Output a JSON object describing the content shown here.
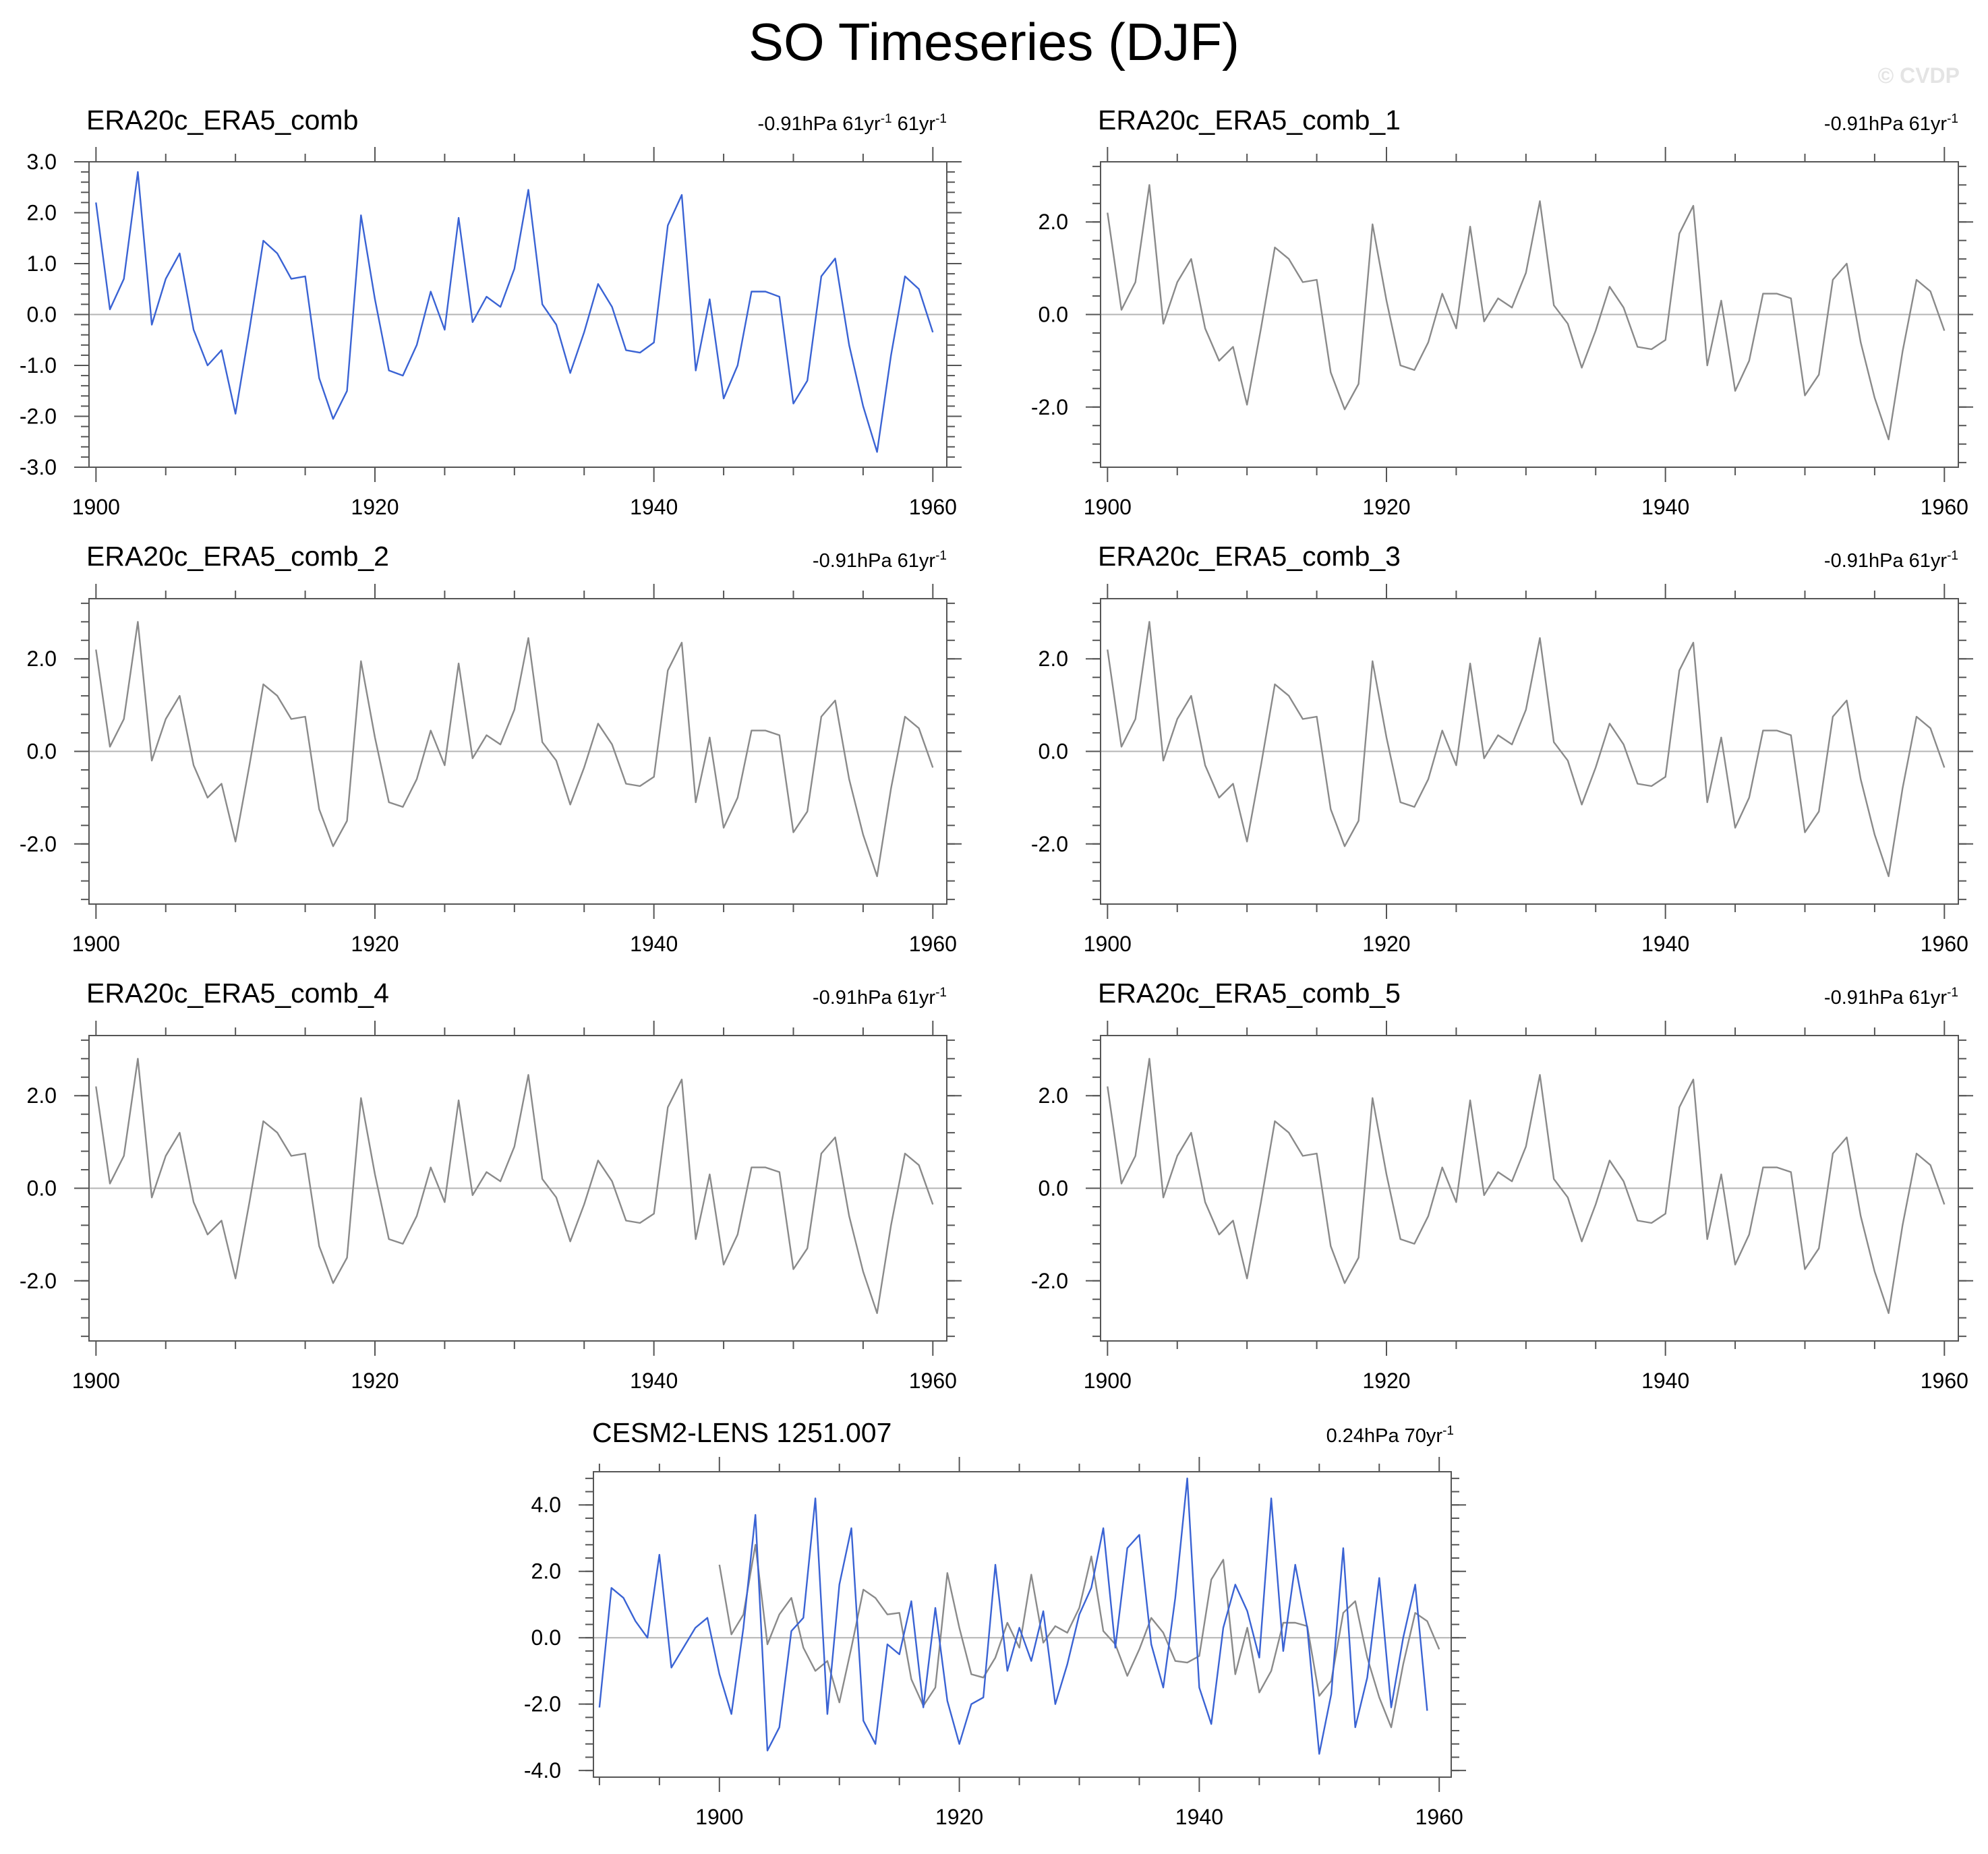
{
  "page": {
    "title": "SO Timeseries (DJF)",
    "watermark": "© CVDP"
  },
  "colors": {
    "observed_line": "#3a63d4",
    "ensemble_line": "#8a8a8a",
    "zero_line": "#b4b4b4",
    "frame": "#555555"
  },
  "chart_data": [
    {
      "type": "line",
      "title": "ERA20c_ERA5_comb",
      "stat": {
        "trend": "-0.91hPa 61yr",
        "sup1": "-1",
        "period": " 61yr",
        "sup2": "-1"
      },
      "xlabel": "",
      "ylabel": "",
      "xlim": [
        1899.5,
        1961.0
      ],
      "ylim": [
        -3.0,
        3.0
      ],
      "xticks": [
        1900,
        1920,
        1940,
        1960
      ],
      "yticks": [
        3.0,
        2.0,
        1.0,
        0.0,
        -1.0,
        -2.0,
        -3.0
      ],
      "ytick_labels": [
        "3.0",
        "2.0",
        "1.0",
        "0.0",
        "-1.0",
        "-2.0",
        "-3.0"
      ],
      "grid": false,
      "zero_line": true,
      "series": [
        {
          "color_key": "observed_line",
          "x_start": 1900,
          "values_ref": "obs"
        }
      ]
    },
    {
      "type": "line",
      "title": "ERA20c_ERA5_comb_1",
      "stat": {
        "trend": "-0.91hPa 61yr",
        "sup1": "-1"
      },
      "xlim": [
        1899.5,
        1961.0
      ],
      "ylim": [
        -3.3,
        3.3
      ],
      "xticks": [
        1900,
        1920,
        1940,
        1960
      ],
      "yticks": [
        2.0,
        0.0,
        -2.0
      ],
      "ytick_labels": [
        "2.0",
        "0.0",
        "-2.0"
      ],
      "grid": false,
      "zero_line": true,
      "series": [
        {
          "color_key": "ensemble_line",
          "x_start": 1900,
          "values_ref": "obs"
        }
      ]
    },
    {
      "type": "line",
      "title": "ERA20c_ERA5_comb_2",
      "stat": {
        "trend": "-0.91hPa 61yr",
        "sup1": "-1"
      },
      "xlim": [
        1899.5,
        1961.0
      ],
      "ylim": [
        -3.3,
        3.3
      ],
      "xticks": [
        1900,
        1920,
        1940,
        1960
      ],
      "yticks": [
        2.0,
        0.0,
        -2.0
      ],
      "ytick_labels": [
        "2.0",
        "0.0",
        "-2.0"
      ],
      "grid": false,
      "zero_line": true,
      "series": [
        {
          "color_key": "ensemble_line",
          "x_start": 1900,
          "values_ref": "obs"
        }
      ]
    },
    {
      "type": "line",
      "title": "ERA20c_ERA5_comb_3",
      "stat": {
        "trend": "-0.91hPa 61yr",
        "sup1": "-1"
      },
      "xlim": [
        1899.5,
        1961.0
      ],
      "ylim": [
        -3.3,
        3.3
      ],
      "xticks": [
        1900,
        1920,
        1940,
        1960
      ],
      "yticks": [
        2.0,
        0.0,
        -2.0
      ],
      "ytick_labels": [
        "2.0",
        "0.0",
        "-2.0"
      ],
      "grid": false,
      "zero_line": true,
      "series": [
        {
          "color_key": "ensemble_line",
          "x_start": 1900,
          "values_ref": "obs"
        }
      ]
    },
    {
      "type": "line",
      "title": "ERA20c_ERA5_comb_4",
      "stat": {
        "trend": "-0.91hPa 61yr",
        "sup1": "-1"
      },
      "xlim": [
        1899.5,
        1961.0
      ],
      "ylim": [
        -3.3,
        3.3
      ],
      "xticks": [
        1900,
        1920,
        1940,
        1960
      ],
      "yticks": [
        2.0,
        0.0,
        -2.0
      ],
      "ytick_labels": [
        "2.0",
        "0.0",
        "-2.0"
      ],
      "grid": false,
      "zero_line": true,
      "series": [
        {
          "color_key": "ensemble_line",
          "x_start": 1900,
          "values_ref": "obs"
        }
      ]
    },
    {
      "type": "line",
      "title": "ERA20c_ERA5_comb_5",
      "stat": {
        "trend": "-0.91hPa 61yr",
        "sup1": "-1"
      },
      "xlim": [
        1899.5,
        1961.0
      ],
      "ylim": [
        -3.3,
        3.3
      ],
      "xticks": [
        1900,
        1920,
        1940,
        1960
      ],
      "yticks": [
        2.0,
        0.0,
        -2.0
      ],
      "ytick_labels": [
        "2.0",
        "0.0",
        "-2.0"
      ],
      "grid": false,
      "zero_line": true,
      "series": [
        {
          "color_key": "ensemble_line",
          "x_start": 1900,
          "values_ref": "obs"
        }
      ]
    },
    {
      "type": "line",
      "title": "CESM2-LENS 1251.007",
      "stat": {
        "trend": "0.24hPa 70yr",
        "sup1": "-1"
      },
      "xlim": [
        1889.5,
        1961.0
      ],
      "ylim": [
        -4.2,
        5.0
      ],
      "xticks": [
        1900,
        1920,
        1940,
        1960
      ],
      "yticks": [
        4.0,
        2.0,
        0.0,
        -2.0,
        -4.0
      ],
      "ytick_labels": [
        "4.0",
        "2.0",
        "0.0",
        "-2.0",
        "-4.0"
      ],
      "grid": false,
      "zero_line": true,
      "series": [
        {
          "color_key": "ensemble_line",
          "x_start": 1900,
          "values_ref": "obs"
        },
        {
          "color_key": "observed_line",
          "x_start": 1890,
          "values_ref": "model"
        }
      ]
    }
  ],
  "series_values": {
    "obs": [
      2.2,
      0.1,
      0.7,
      2.8,
      -0.2,
      0.7,
      1.2,
      -0.3,
      -1.0,
      -0.7,
      -1.95,
      -0.3,
      1.45,
      1.2,
      0.7,
      0.75,
      -1.25,
      -2.05,
      -1.5,
      1.95,
      0.3,
      -1.1,
      -1.2,
      -0.6,
      0.45,
      -0.3,
      1.9,
      -0.15,
      0.35,
      0.15,
      0.9,
      2.45,
      0.2,
      -0.2,
      -1.15,
      -0.35,
      0.6,
      0.15,
      -0.7,
      -0.75,
      -0.55,
      1.75,
      2.35,
      -1.1,
      0.3,
      -1.65,
      -1.0,
      0.45,
      0.45,
      0.35,
      -1.75,
      -1.3,
      0.75,
      1.1,
      -0.6,
      -1.8,
      -2.7,
      -0.8,
      0.75,
      0.5,
      -0.35
    ],
    "model": [
      -2.1,
      1.5,
      1.2,
      0.5,
      0.0,
      2.5,
      -0.9,
      -0.3,
      0.3,
      0.6,
      -1.1,
      -2.3,
      0.3,
      3.7,
      -3.4,
      -2.7,
      0.2,
      0.6,
      4.2,
      -2.3,
      1.6,
      3.3,
      -2.5,
      -3.2,
      -0.2,
      -0.5,
      1.1,
      -2.1,
      0.9,
      -1.9,
      -3.2,
      -2.0,
      -1.8,
      2.2,
      -1.0,
      0.3,
      -0.7,
      0.8,
      -2.0,
      -0.8,
      0.7,
      1.5,
      3.3,
      -0.3,
      2.7,
      3.1,
      -0.2,
      -1.5,
      1.2,
      4.8,
      -1.5,
      -2.6,
      0.3,
      1.6,
      0.8,
      -0.6,
      4.2,
      -0.4,
      2.2,
      0.3,
      -3.5,
      -1.7,
      2.7,
      -2.7,
      -1.2,
      1.8,
      -2.1,
      0.0,
      1.6,
      -2.2
    ]
  }
}
